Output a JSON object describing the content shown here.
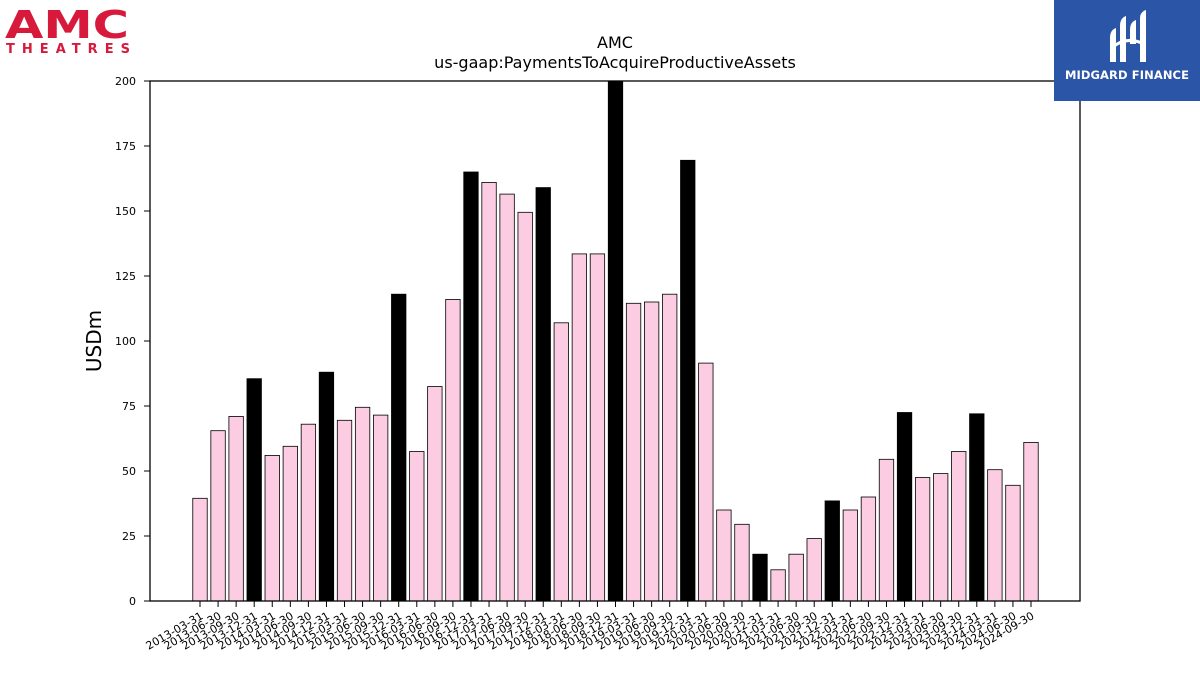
{
  "branding": {
    "left_logo_text": "AMC",
    "left_logo_subtext": "THEATRES",
    "right_logo_text": "MIDGARD FINANCE",
    "amc_color": "#d71a3c",
    "midgard_bg": "#2b56a8"
  },
  "chart_data": {
    "type": "bar",
    "title": "AMC",
    "subtitle": "us-gaap:PaymentsToAcquireProductiveAssets",
    "xlabel": "",
    "ylabel": "USDm",
    "ylim": [
      0,
      200
    ],
    "yticks": [
      0,
      25,
      50,
      75,
      100,
      125,
      150,
      175,
      200
    ],
    "grid": false,
    "colors": {
      "quarter": "#fbcce2",
      "year_end": "#000000",
      "edge": "#000000"
    },
    "categories": [
      "2013-03-31",
      "2013-06-30",
      "2013-09-30",
      "2013-12-31",
      "2014-03-31",
      "2014-06-30",
      "2014-09-30",
      "2014-12-31",
      "2015-03-31",
      "2015-06-30",
      "2015-09-30",
      "2015-12-31",
      "2016-03-31",
      "2016-06-30",
      "2016-09-30",
      "2016-12-31",
      "2017-03-31",
      "2017-06-30",
      "2017-09-30",
      "2017-12-31",
      "2018-03-31",
      "2018-06-30",
      "2018-09-30",
      "2018-12-31",
      "2019-03-31",
      "2019-06-30",
      "2019-09-30",
      "2019-12-31",
      "2020-03-31",
      "2020-06-30",
      "2020-09-30",
      "2020-12-31",
      "2021-03-31",
      "2021-06-30",
      "2021-09-30",
      "2021-12-31",
      "2022-03-31",
      "2022-06-30",
      "2022-09-30",
      "2022-12-31",
      "2023-03-31",
      "2023-06-30",
      "2023-09-30",
      "2023-12-31",
      "2024-03-31",
      "2024-06-30",
      "2024-09-30"
    ],
    "values": [
      39.5,
      65.5,
      71.0,
      85.5,
      56.0,
      59.5,
      68.0,
      88.0,
      69.5,
      74.5,
      71.5,
      118.0,
      57.5,
      82.5,
      116.0,
      165.0,
      161.0,
      156.5,
      149.5,
      159.0,
      107.0,
      133.5,
      133.5,
      203.0,
      114.5,
      115.0,
      118.0,
      169.5,
      91.5,
      35.0,
      29.5,
      18.0,
      12.0,
      18.0,
      24.0,
      38.5,
      35.0,
      40.0,
      54.5,
      72.5,
      47.5,
      49.0,
      57.5,
      72.0,
      50.5,
      44.5,
      61.0
    ]
  }
}
